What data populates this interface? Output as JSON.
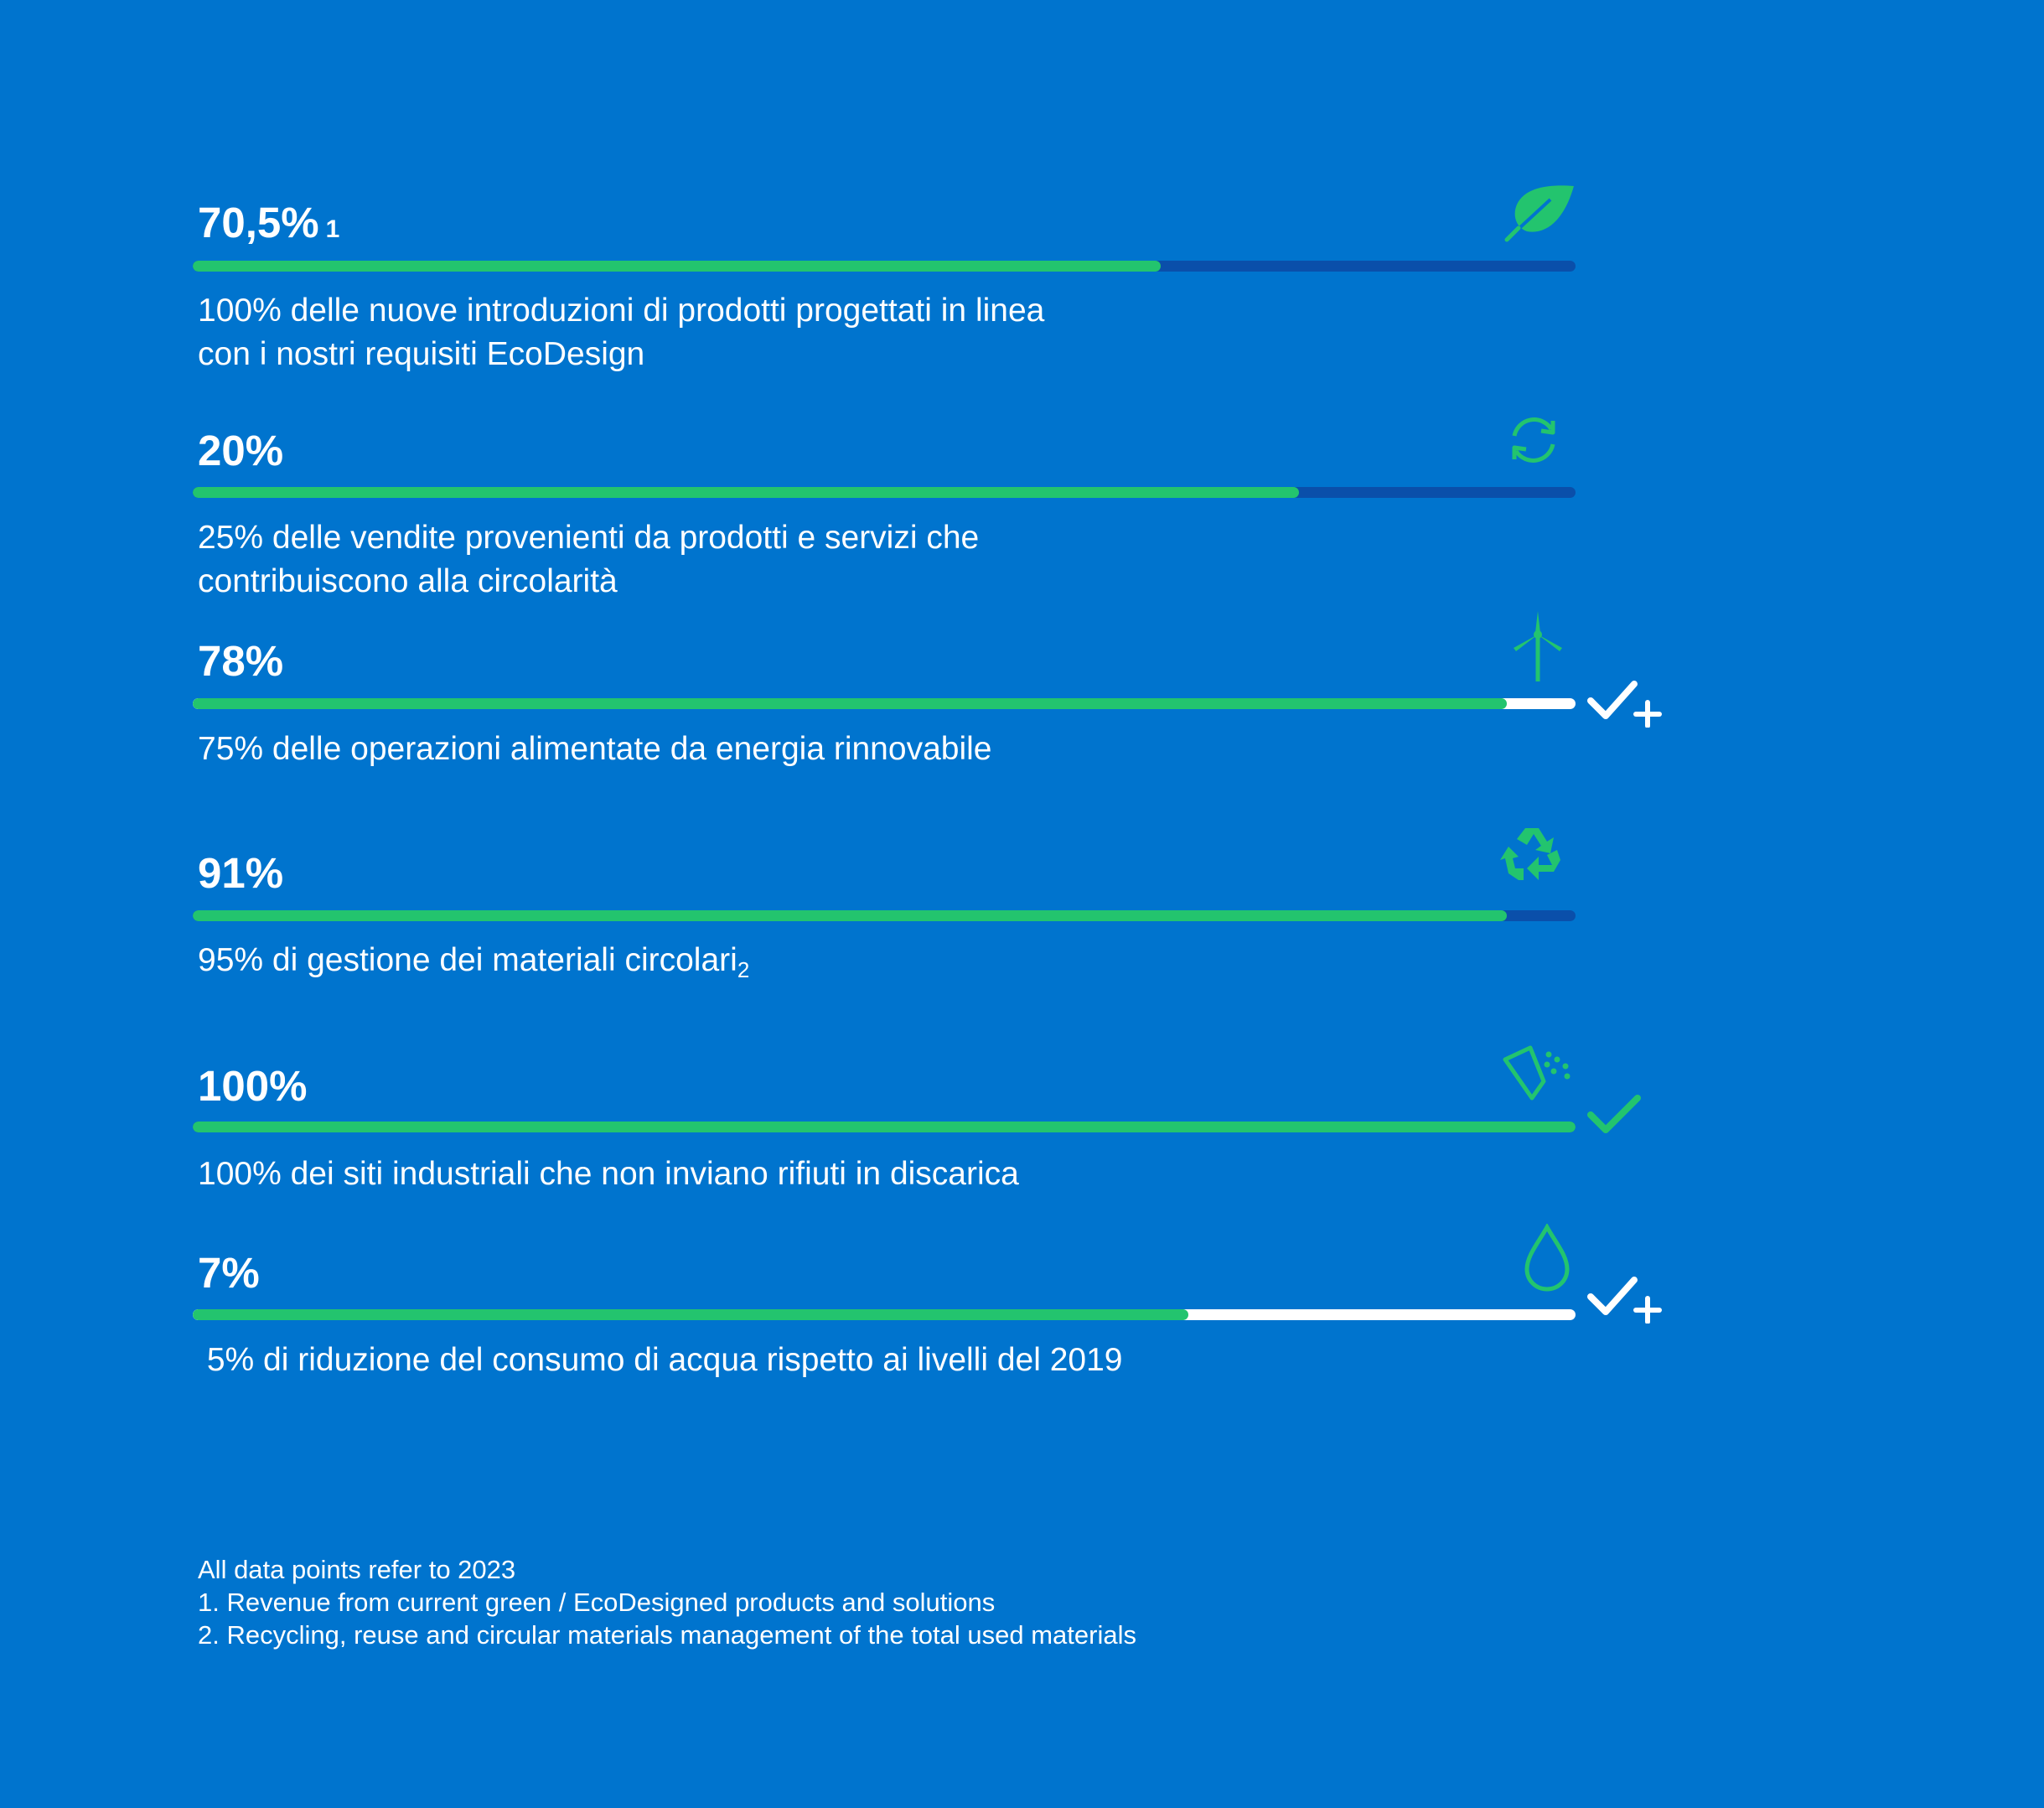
{
  "chart_data": {
    "type": "bar",
    "orientation": "horizontal",
    "bars": [
      {
        "value_label": "70,5%",
        "footnote_ref": "1",
        "progress": 0.7,
        "track_color": "#0A4FAA",
        "desc_lines": [
          "100% delle nuove introduzioni di prodotti progettati in linea",
          "con i nostri requisiti EcoDesign"
        ],
        "icon": "leaf-icon",
        "badge": ""
      },
      {
        "value_label": "20%",
        "footnote_ref": "",
        "progress": 0.8,
        "track_color": "#0A4FAA",
        "desc_lines": [
          "25% delle vendite provenienti da prodotti e servizi che",
          "contribuiscono alla circolarità"
        ],
        "icon": "refresh-arrows-icon",
        "badge": ""
      },
      {
        "value_label": "78%",
        "footnote_ref": "",
        "progress": 0.95,
        "track_color": "#FFFFFF",
        "desc_lines": [
          "75% delle operazioni alimentate da energia rinnovabile"
        ],
        "icon": "wind-turbine-icon",
        "badge": "check-plus-icon"
      },
      {
        "value_label": "91%",
        "footnote_ref": "",
        "progress": 0.95,
        "track_color": "#0A4FAA",
        "desc_lines": [
          "95% di gestione dei materiali circolari"
        ],
        "desc_sub": "2",
        "icon": "recycle-icon",
        "badge": ""
      },
      {
        "value_label": "100%",
        "footnote_ref": "",
        "progress": 1.0,
        "track_color": "#0A4FAA",
        "desc_lines": [
          "100% dei siti industriali che non inviano rifiuti in discarica"
        ],
        "icon": "dustpan-icon",
        "badge": "check-icon"
      },
      {
        "value_label": "7%",
        "footnote_ref": "",
        "progress": 0.72,
        "track_color": "#FFFFFF",
        "desc_lines": [
          " 5% di riduzione del consumo di acqua rispetto ai livelli del 2019"
        ],
        "icon": "water-drop-icon",
        "badge": "check-plus-icon"
      }
    ]
  },
  "footnotes": [
    "All data points refer to 2023",
    "1. Revenue from current green / EcoDesigned products and solutions",
    "2. Recycling, reuse and circular materials management of the total used materials"
  ],
  "colors": {
    "background": "#0074CE",
    "fill": "#23C46E",
    "icon": "#23C46E",
    "text": "#FFFFFF"
  }
}
